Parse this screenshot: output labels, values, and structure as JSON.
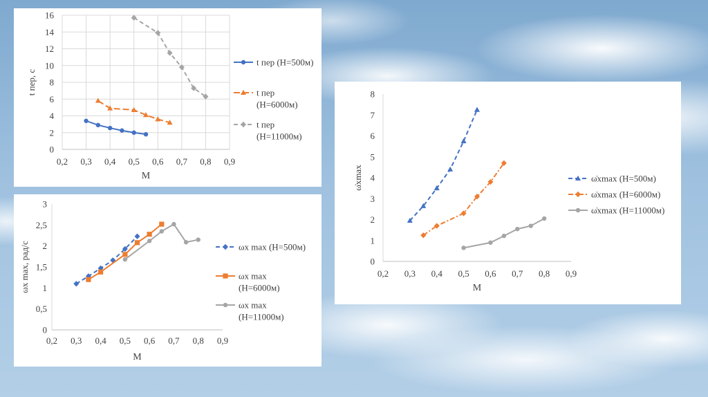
{
  "chart_data": [
    {
      "type": "line",
      "xlabel": "M",
      "ylabel": "t пер, с",
      "xlim": [
        0.2,
        0.9
      ],
      "ylim": [
        0,
        16
      ],
      "xticks": [
        "0,2",
        "0,3",
        "0,4",
        "0,5",
        "0,6",
        "0,7",
        "0,8",
        "0,9"
      ],
      "yticks": [
        "0",
        "2",
        "4",
        "6",
        "8",
        "10",
        "12",
        "14",
        "16"
      ],
      "grid": true,
      "legend_position": "right",
      "series": [
        {
          "name": "t пер (H=500м)",
          "legend_lines": [
            "t пер (H=500м)"
          ],
          "color": "#4472C4",
          "marker": "circle",
          "dash": "solid",
          "x": [
            0.3,
            0.35,
            0.4,
            0.45,
            0.5,
            0.55
          ],
          "y": [
            3.4,
            2.9,
            2.55,
            2.25,
            2.0,
            1.8
          ]
        },
        {
          "name": "t пер (H=6000м)",
          "legend_lines": [
            "t пер",
            "(H=6000м)"
          ],
          "color": "#ED7D31",
          "marker": "triangle",
          "dash": "longdash",
          "x": [
            0.35,
            0.4,
            0.5,
            0.55,
            0.6,
            0.65
          ],
          "y": [
            5.8,
            4.9,
            4.7,
            4.1,
            3.6,
            3.2
          ]
        },
        {
          "name": "t пер (H=11000м)",
          "legend_lines": [
            "t пер",
            "(H=11000м)"
          ],
          "color": "#A5A5A5",
          "marker": "diamond",
          "dash": "dash",
          "x": [
            0.5,
            0.6,
            0.65,
            0.7,
            0.75,
            0.8
          ],
          "y": [
            15.7,
            13.9,
            11.5,
            9.8,
            7.3,
            6.3
          ]
        }
      ]
    },
    {
      "type": "line",
      "xlabel": "M",
      "ylabel": "ωx max, рад/с",
      "xlim": [
        0.2,
        0.9
      ],
      "ylim": [
        0,
        3
      ],
      "xticks": [
        "0,2",
        "0,3",
        "0,4",
        "0,5",
        "0,6",
        "0,7",
        "0,8",
        "0,9"
      ],
      "yticks": [
        "0",
        "0,5",
        "1",
        "1,5",
        "2",
        "2,5",
        "3"
      ],
      "grid": false,
      "legend_position": "right",
      "series": [
        {
          "name": "ωx max (H=500м)",
          "legend_lines": [
            "ωx max (H=500м)"
          ],
          "color": "#4472C4",
          "marker": "diamond",
          "dash": "dash",
          "x": [
            0.3,
            0.35,
            0.4,
            0.45,
            0.5,
            0.55
          ],
          "y": [
            1.1,
            1.28,
            1.47,
            1.66,
            1.93,
            2.23
          ]
        },
        {
          "name": "ωx max (H=6000м)",
          "legend_lines": [
            "ωx max",
            "(H=6000м)"
          ],
          "color": "#ED7D31",
          "marker": "square",
          "dash": "solid",
          "x": [
            0.35,
            0.4,
            0.5,
            0.55,
            0.6,
            0.65
          ],
          "y": [
            1.2,
            1.38,
            1.8,
            2.08,
            2.28,
            2.52
          ]
        },
        {
          "name": "ωx max (H=11000м)",
          "legend_lines": [
            "ωx max",
            "(H=11000м)"
          ],
          "color": "#A5A5A5",
          "marker": "circle",
          "dash": "solid",
          "x": [
            0.5,
            0.6,
            0.65,
            0.7,
            0.75,
            0.8
          ],
          "y": [
            1.68,
            2.12,
            2.35,
            2.52,
            2.09,
            2.15
          ]
        }
      ]
    },
    {
      "type": "line",
      "xlabel": "M",
      "ylabel": "ω̇xmax",
      "xlim": [
        0.2,
        0.9
      ],
      "ylim": [
        0,
        8
      ],
      "xticks": [
        "0,2",
        "0,3",
        "0,4",
        "0,5",
        "0,6",
        "0,7",
        "0,8",
        "0,9"
      ],
      "yticks": [
        "0",
        "1",
        "2",
        "3",
        "4",
        "5",
        "6",
        "7",
        "8"
      ],
      "grid": false,
      "legend_position": "right",
      "series": [
        {
          "name": "ω̇xmax (H=500м)",
          "legend_lines": [
            "ω̇xmax (H=500м)"
          ],
          "color": "#4472C4",
          "marker": "triangle",
          "dash": "dash",
          "x": [
            0.3,
            0.35,
            0.4,
            0.45,
            0.5,
            0.55
          ],
          "y": [
            1.95,
            2.65,
            3.5,
            4.4,
            5.75,
            7.25
          ]
        },
        {
          "name": "ω̇xmax (H=6000м)",
          "legend_lines": [
            "ω̇xmax (H=6000м)"
          ],
          "color": "#ED7D31",
          "marker": "diamond",
          "dash": "dashdot",
          "x": [
            0.35,
            0.4,
            0.5,
            0.55,
            0.6,
            0.65
          ],
          "y": [
            1.25,
            1.7,
            2.3,
            3.1,
            3.8,
            4.7
          ]
        },
        {
          "name": "ω̇xmax (H=11000м)",
          "legend_lines": [
            "ω̇xmax (H=11000м)"
          ],
          "color": "#A5A5A5",
          "marker": "circle",
          "dash": "solid",
          "x": [
            0.5,
            0.6,
            0.65,
            0.7,
            0.75,
            0.8
          ],
          "y": [
            0.65,
            0.9,
            1.22,
            1.55,
            1.7,
            2.05
          ]
        }
      ]
    }
  ]
}
